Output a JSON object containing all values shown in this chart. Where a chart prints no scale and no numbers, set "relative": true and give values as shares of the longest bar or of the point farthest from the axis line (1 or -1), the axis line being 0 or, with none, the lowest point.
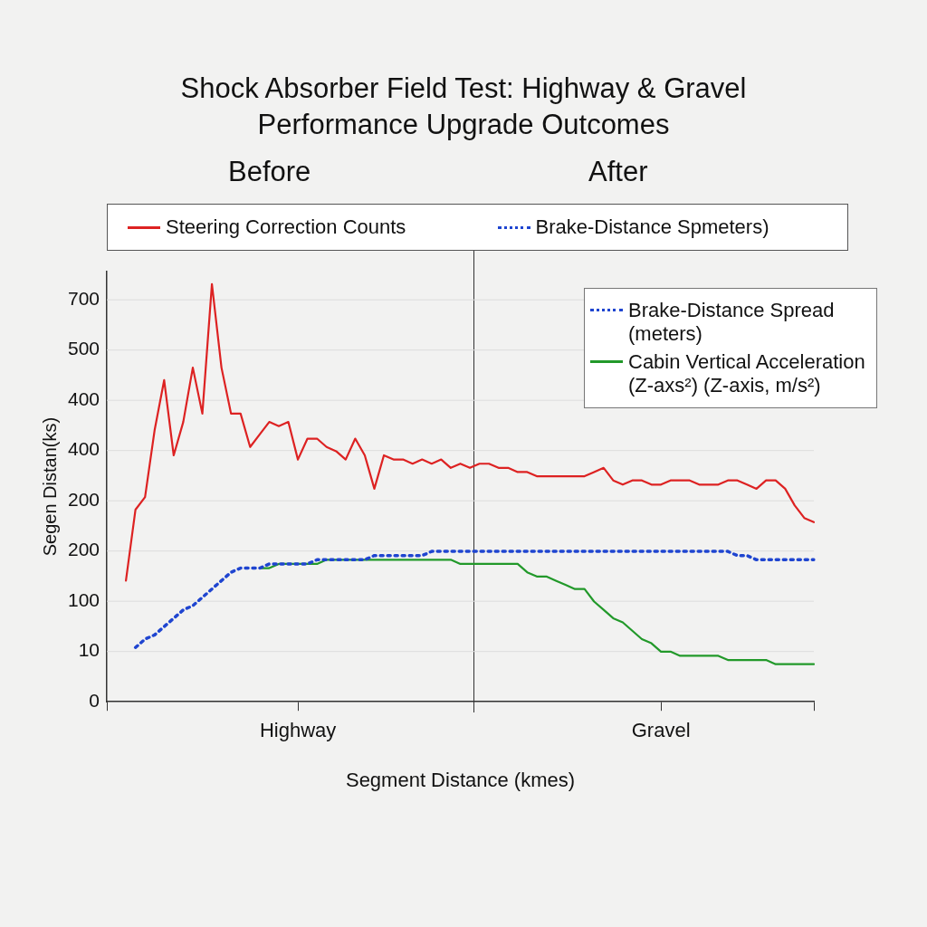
{
  "chart_data": {
    "type": "line",
    "title": "Shock Absorber Field Test: Highway & Gravel Performance Upgrade Outcomes",
    "xlabel": "Segment Distance (kmes)",
    "ylabel": "Segen Distan(ks)",
    "annotations": [
      "Before",
      "After",
      "Brake-Distance Spmeters)",
      "700",
      "500",
      "400",
      "400",
      "200",
      "200",
      "100",
      "10",
      "0"
    ],
    "categories": [
      null,
      null,
      null,
      null,
      null,
      null,
      null,
      null,
      null,
      null,
      null,
      null,
      null,
      null,
      null,
      null,
      null,
      null,
      null,
      null,
      "Highway",
      null,
      null,
      null,
      null,
      null,
      null,
      null,
      null,
      null,
      null,
      null,
      null,
      null,
      null,
      null,
      null,
      null,
      null,
      null,
      null,
      null,
      null,
      null,
      null,
      null,
      null,
      null,
      null,
      null,
      null,
      null,
      null,
      null,
      null,
      null,
      null,
      null,
      "Gravel",
      null,
      null,
      null,
      null,
      null,
      null,
      null,
      null,
      null,
      null,
      null,
      null,
      null,
      null,
      null,
      null
    ],
    "relative": true,
    "grid": "y",
    "legend": "top",
    "marker": "none",
    "series": [
      {
        "name": "Steering Correction Counts",
        "color": "#dd2222",
        "line_style": "solid",
        "values": [
          null,
          null,
          0.29,
          0.46,
          0.49,
          0.65,
          0.77,
          0.59,
          0.67,
          0.8,
          0.69,
          1,
          0.8,
          0.69,
          0.69,
          0.61,
          0.64,
          0.67,
          0.66,
          0.67,
          0.58,
          0.63,
          0.63,
          0.61,
          0.6,
          0.58,
          0.63,
          0.59,
          0.51,
          0.59,
          0.58,
          0.58,
          0.57,
          0.58,
          0.57,
          0.58,
          0.56,
          0.57,
          0.56,
          0.57,
          0.57,
          0.56,
          0.56,
          0.55,
          0.55,
          0.54,
          0.54,
          0.54,
          0.54,
          0.54,
          0.54,
          0.55,
          0.56,
          0.53,
          0.52,
          0.53,
          0.53,
          0.52,
          0.52,
          0.53,
          0.53,
          0.53,
          0.52,
          0.52,
          0.52,
          0.53,
          0.53,
          0.52,
          0.51,
          0.53,
          0.53,
          0.51,
          0.47,
          0.44,
          0.43
        ]
      },
      {
        "name": "Brake-Distance Spread (meters)",
        "color": "#1f45d0",
        "line_style": "dotted",
        "values": [
          null,
          null,
          null,
          0.13,
          0.15,
          0.16,
          0.18,
          0.2,
          0.22,
          0.23,
          0.25,
          0.27,
          0.29,
          0.31,
          0.32,
          0.32,
          0.32,
          0.33,
          0.33,
          0.33,
          0.33,
          0.33,
          0.34,
          0.34,
          0.34,
          0.34,
          0.34,
          0.34,
          0.35,
          0.35,
          0.35,
          0.35,
          0.35,
          0.35,
          0.36,
          0.36,
          0.36,
          0.36,
          0.36,
          0.36,
          0.36,
          0.36,
          0.36,
          0.36,
          0.36,
          0.36,
          0.36,
          0.36,
          0.36,
          0.36,
          0.36,
          0.36,
          0.36,
          0.36,
          0.36,
          0.36,
          0.36,
          0.36,
          0.36,
          0.36,
          0.36,
          0.36,
          0.36,
          0.36,
          0.36,
          0.36,
          0.35,
          0.35,
          0.34,
          0.34,
          0.34,
          0.34,
          0.34,
          0.34,
          0.34
        ]
      },
      {
        "name": "Cabin Vertical Acceleration (Z-axs²) (Z-axis, m/s²)",
        "color": "#22992a",
        "line_style": "solid",
        "values": [
          null,
          null,
          null,
          null,
          null,
          null,
          null,
          null,
          null,
          null,
          null,
          null,
          null,
          null,
          null,
          null,
          0.32,
          0.32,
          0.33,
          0.33,
          0.33,
          0.33,
          0.33,
          0.34,
          0.34,
          0.34,
          0.34,
          0.34,
          0.34,
          0.34,
          0.34,
          0.34,
          0.34,
          0.34,
          0.34,
          0.34,
          0.34,
          0.33,
          0.33,
          0.33,
          0.33,
          0.33,
          0.33,
          0.33,
          0.31,
          0.3,
          0.3,
          0.29,
          0.28,
          0.27,
          0.27,
          0.24,
          0.22,
          0.2,
          0.19,
          0.17,
          0.15,
          0.14,
          0.12,
          0.12,
          0.11,
          0.11,
          0.11,
          0.11,
          0.11,
          0.1,
          0.1,
          0.1,
          0.1,
          0.1,
          0.09,
          0.09,
          0.09,
          0.09,
          0.09
        ]
      }
    ]
  }
}
